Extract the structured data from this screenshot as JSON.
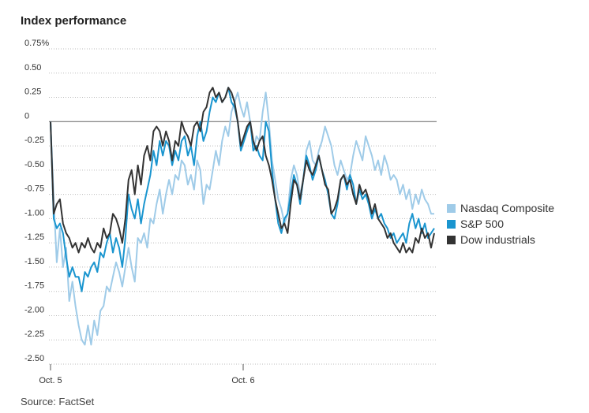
{
  "title": "Index performance",
  "source": "Source: FactSet",
  "chart_data": {
    "type": "line",
    "title": "Index performance",
    "xlabel": "",
    "ylabel": "",
    "ylim": [
      -2.5,
      0.75
    ],
    "yticks": [
      0.75,
      0.5,
      0.25,
      0,
      -0.25,
      -0.5,
      -0.75,
      -1.0,
      -1.25,
      -1.5,
      -1.75,
      -2.0,
      -2.25,
      -2.5
    ],
    "ytick_labels": [
      "0.75%",
      "0.50",
      "0.25",
      "0",
      "-0.25",
      "-0.50",
      "-0.75",
      "-1.00",
      "-1.25",
      "-1.50",
      "-1.75",
      "-2.00",
      "-2.25",
      "-2.50"
    ],
    "xtick_labels": [
      {
        "label": "Oct. 5",
        "session": 0
      },
      {
        "label": "Oct. 6",
        "session": 1
      }
    ],
    "sessions": [
      "Oct. 5",
      "Oct. 6"
    ],
    "grid": "horizontal dotted",
    "legend_position": "right",
    "series": [
      {
        "name": "Nasdaq Composite",
        "color": "#9fcbe8",
        "values": [
          0.0,
          -0.8,
          -1.45,
          -1.1,
          -1.5,
          -1.3,
          -1.85,
          -1.65,
          -1.9,
          -2.1,
          -2.25,
          -2.3,
          -2.1,
          -2.3,
          -2.05,
          -2.2,
          -1.95,
          -1.9,
          -1.7,
          -1.75,
          -1.6,
          -1.45,
          -1.55,
          -1.7,
          -1.5,
          -1.3,
          -1.5,
          -1.65,
          -1.2,
          -1.25,
          -1.15,
          -1.3,
          -1.0,
          -1.05,
          -0.85,
          -0.7,
          -0.95,
          -0.75,
          -0.6,
          -0.75,
          -0.55,
          -0.6,
          -0.4,
          -0.45,
          -0.65,
          -0.55,
          -0.7,
          -0.4,
          -0.5,
          -0.85,
          -0.65,
          -0.7,
          -0.5,
          -0.3,
          -0.45,
          -0.2,
          -0.05,
          -0.15,
          0.1,
          0.2,
          0.3,
          0.15,
          0.05,
          0.2,
          0.0,
          -0.3,
          -0.15,
          -0.2,
          0.1,
          0.3,
          0.0,
          -0.4,
          -0.6,
          -0.8,
          -0.9,
          -1.05,
          -0.95,
          -0.6,
          -0.45,
          -0.55,
          -0.75,
          -0.6,
          -0.3,
          -0.2,
          -0.4,
          -0.45,
          -0.3,
          -0.2,
          -0.05,
          -0.15,
          -0.25,
          -0.45,
          -0.55,
          -0.4,
          -0.5,
          -0.6,
          -0.55,
          -0.35,
          -0.2,
          -0.3,
          -0.4,
          -0.15,
          -0.25,
          -0.35,
          -0.5,
          -0.4,
          -0.55,
          -0.35,
          -0.45,
          -0.6,
          -0.55,
          -0.6,
          -0.75,
          -0.65,
          -0.8,
          -0.7,
          -0.9,
          -0.75,
          -0.85,
          -0.7,
          -0.8,
          -0.85,
          -0.95,
          -0.95
        ]
      },
      {
        "name": "S&P 500",
        "color": "#1a95cf",
        "values": [
          0.0,
          -1.0,
          -1.1,
          -1.05,
          -1.15,
          -1.4,
          -1.6,
          -1.5,
          -1.6,
          -1.6,
          -1.75,
          -1.55,
          -1.6,
          -1.5,
          -1.45,
          -1.55,
          -1.35,
          -1.4,
          -1.25,
          -1.15,
          -1.35,
          -1.2,
          -1.3,
          -1.5,
          -1.2,
          -0.75,
          -0.9,
          -1.0,
          -0.8,
          -1.05,
          -0.85,
          -0.7,
          -0.55,
          -0.3,
          -0.45,
          -0.2,
          -0.35,
          -0.2,
          -0.25,
          -0.45,
          -0.3,
          -0.4,
          -0.2,
          -0.15,
          -0.35,
          -0.25,
          -0.45,
          -0.15,
          0.0,
          -0.2,
          -0.1,
          0.1,
          0.25,
          0.2,
          0.3,
          0.2,
          0.25,
          0.35,
          0.2,
          0.15,
          0.0,
          -0.3,
          -0.2,
          -0.1,
          0.0,
          -0.3,
          -0.25,
          -0.35,
          -0.4,
          0.0,
          -0.1,
          -0.5,
          -0.8,
          -1.05,
          -1.15,
          -1.0,
          -0.95,
          -0.75,
          -0.55,
          -0.65,
          -0.85,
          -0.6,
          -0.35,
          -0.45,
          -0.6,
          -0.5,
          -0.35,
          -0.5,
          -0.6,
          -0.75,
          -0.95,
          -1.0,
          -0.85,
          -0.6,
          -0.55,
          -0.7,
          -0.55,
          -0.65,
          -0.85,
          -0.7,
          -0.8,
          -0.75,
          -0.85,
          -1.0,
          -0.9,
          -1.0,
          -0.95,
          -1.05,
          -1.1,
          -1.2,
          -1.15,
          -1.25,
          -1.2,
          -1.15,
          -1.25,
          -1.05,
          -0.95,
          -1.1,
          -1.0,
          -1.15,
          -1.05,
          -1.2,
          -1.15,
          -1.1
        ]
      },
      {
        "name": "Dow industrials",
        "color": "#333333",
        "values": [
          0.0,
          -0.95,
          -0.85,
          -0.8,
          -1.05,
          -1.15,
          -1.2,
          -1.3,
          -1.25,
          -1.35,
          -1.25,
          -1.3,
          -1.2,
          -1.3,
          -1.35,
          -1.25,
          -1.3,
          -1.1,
          -1.2,
          -1.15,
          -0.95,
          -1.0,
          -1.1,
          -1.25,
          -1.0,
          -0.6,
          -0.5,
          -0.75,
          -0.45,
          -0.65,
          -0.35,
          -0.25,
          -0.4,
          -0.1,
          -0.05,
          -0.1,
          -0.25,
          -0.1,
          -0.2,
          -0.4,
          -0.2,
          -0.25,
          0.0,
          -0.1,
          -0.15,
          -0.25,
          -0.05,
          0.0,
          -0.1,
          0.1,
          0.15,
          0.3,
          0.35,
          0.25,
          0.3,
          0.2,
          0.25,
          0.35,
          0.3,
          0.2,
          0.0,
          -0.25,
          -0.15,
          -0.05,
          0.0,
          -0.2,
          -0.3,
          -0.2,
          -0.15,
          -0.35,
          -0.45,
          -0.6,
          -0.8,
          -0.95,
          -1.1,
          -1.05,
          -1.15,
          -0.85,
          -0.6,
          -0.65,
          -0.8,
          -0.6,
          -0.4,
          -0.5,
          -0.55,
          -0.45,
          -0.35,
          -0.5,
          -0.65,
          -0.7,
          -0.95,
          -0.9,
          -0.8,
          -0.6,
          -0.55,
          -0.65,
          -0.6,
          -0.75,
          -0.85,
          -0.65,
          -0.75,
          -0.7,
          -0.8,
          -0.95,
          -0.85,
          -1.0,
          -1.05,
          -1.1,
          -1.2,
          -1.15,
          -1.25,
          -1.3,
          -1.35,
          -1.25,
          -1.35,
          -1.3,
          -1.35,
          -1.2,
          -1.25,
          -1.1,
          -1.2,
          -1.15,
          -1.3,
          -1.15
        ]
      }
    ]
  }
}
